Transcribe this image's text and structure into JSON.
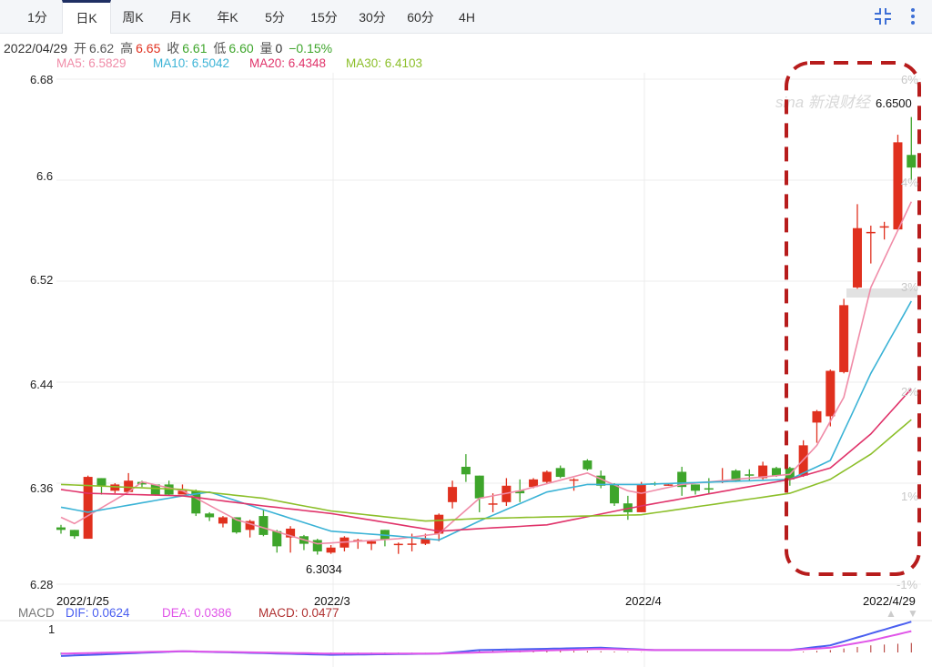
{
  "tabs": [
    {
      "label": "1分",
      "active": false
    },
    {
      "label": "日K",
      "active": true
    },
    {
      "label": "周K",
      "active": false
    },
    {
      "label": "月K",
      "active": false
    },
    {
      "label": "年K",
      "active": false
    },
    {
      "label": "5分",
      "active": false
    },
    {
      "label": "15分",
      "active": false
    },
    {
      "label": "30分",
      "active": false
    },
    {
      "label": "60分",
      "active": false
    },
    {
      "label": "4H",
      "active": false
    }
  ],
  "toolbar_icons": {
    "compress": "compress-icon",
    "more": "more-vertical-icon"
  },
  "info": {
    "date": "2022/04/29",
    "open_label": "开",
    "open": "6.62",
    "high_label": "高",
    "high": "6.65",
    "close_label": "收",
    "close": "6.61",
    "low_label": "低",
    "low": "6.60",
    "volume_label": "量",
    "volume": "0",
    "change": "−0.15%"
  },
  "ma_legend": [
    {
      "text": "MA5: 6.5829",
      "color": "#f08ca8"
    },
    {
      "text": "MA10: 6.5042",
      "color": "#3bb3d6"
    },
    {
      "text": "MA20: 6.4348",
      "color": "#e0336a"
    },
    {
      "text": "MA30: 6.4103",
      "color": "#8cbf2a"
    }
  ],
  "annotations": {
    "max_label": "6.6500",
    "min_label": "6.3034",
    "watermark": "sina 新浪财经"
  },
  "macd_legend": {
    "title": "MACD",
    "dif": "DIF: 0.0624",
    "dea": "DEA: 0.0386",
    "macd": "MACD: 0.0477"
  },
  "colors": {
    "up": "#e0301e",
    "down": "#3ea52b",
    "doji": "#222222",
    "dif": "#4a5ff0",
    "dea": "#e055e8",
    "highlight_box": "#b71c1c"
  },
  "chart_data": [
    {
      "type": "candlestick",
      "ylim": [
        6.28,
        6.68
      ],
      "y_ticks": [
        "6.68",
        "6.6",
        "6.52",
        "6.44",
        "6.36",
        "6.28"
      ],
      "right_ticks": [
        "6%",
        "4%",
        "3%",
        "2%",
        "1%",
        "-1%"
      ],
      "x_ticks": [
        {
          "label": "2022/1/25",
          "index": 0
        },
        {
          "label": "2022/3",
          "index": 20
        },
        {
          "label": "2022/4",
          "index": 43
        },
        {
          "label": "2022/4/29",
          "index": 63
        }
      ],
      "grid": true,
      "ohlc": [
        [
          6.325,
          6.327,
          6.32,
          6.323
        ],
        [
          6.323,
          6.323,
          6.316,
          6.318
        ],
        [
          6.316,
          6.366,
          6.316,
          6.365
        ],
        [
          6.364,
          6.364,
          6.351,
          6.358
        ],
        [
          6.354,
          6.36,
          6.352,
          6.359
        ],
        [
          6.353,
          6.368,
          6.353,
          6.362
        ],
        [
          6.361,
          6.362,
          6.357,
          6.359
        ],
        [
          6.359,
          6.359,
          6.35,
          6.351
        ],
        [
          6.359,
          6.362,
          6.35,
          6.351
        ],
        [
          6.351,
          6.359,
          6.351,
          6.354
        ],
        [
          6.354,
          6.355,
          6.334,
          6.336
        ],
        [
          6.336,
          6.337,
          6.33,
          6.333
        ],
        [
          6.328,
          6.334,
          6.325,
          6.333
        ],
        [
          6.333,
          6.333,
          6.32,
          6.321
        ],
        [
          6.323,
          6.331,
          6.317,
          6.33
        ],
        [
          6.334,
          6.339,
          6.318,
          6.319
        ],
        [
          6.322,
          6.323,
          6.305,
          6.31
        ],
        [
          6.317,
          6.326,
          6.305,
          6.324
        ],
        [
          6.318,
          6.319,
          6.307,
          6.312
        ],
        [
          6.315,
          6.316,
          6.3034,
          6.306
        ],
        [
          6.305,
          6.311,
          6.304,
          6.309
        ],
        [
          6.309,
          6.318,
          6.306,
          6.317
        ],
        [
          6.314,
          6.316,
          6.308,
          6.315
        ],
        [
          6.312,
          6.315,
          6.307,
          6.314
        ],
        [
          6.323,
          6.323,
          6.31,
          6.315
        ],
        [
          6.311,
          6.313,
          6.304,
          6.312
        ],
        [
          6.3118,
          6.32,
          6.306,
          6.3122
        ],
        [
          6.312,
          6.32,
          6.311,
          6.316
        ],
        [
          6.32,
          6.336,
          6.314,
          6.335
        ],
        [
          6.345,
          6.362,
          6.34,
          6.357
        ],
        [
          6.373,
          6.383,
          6.361,
          6.367
        ],
        [
          6.366,
          6.366,
          6.337,
          6.348
        ],
        [
          6.344,
          6.352,
          6.337,
          6.344
        ],
        [
          6.345,
          6.364,
          6.342,
          6.358
        ],
        [
          6.354,
          6.363,
          6.345,
          6.352
        ],
        [
          6.357,
          6.364,
          6.356,
          6.363
        ],
        [
          6.361,
          6.37,
          6.36,
          6.369
        ],
        [
          6.372,
          6.374,
          6.364,
          6.365
        ],
        [
          6.362,
          6.364,
          6.354,
          6.363
        ],
        [
          6.378,
          6.379,
          6.37,
          6.371
        ],
        [
          6.366,
          6.37,
          6.356,
          6.358
        ],
        [
          6.359,
          6.36,
          6.342,
          6.344
        ],
        [
          6.344,
          6.35,
          6.331,
          6.337
        ],
        [
          6.337,
          6.361,
          6.337,
          6.359
        ],
        [
          6.36,
          6.361,
          6.358,
          6.359
        ],
        [
          6.359,
          6.36,
          6.358,
          6.359
        ],
        [
          6.369,
          6.373,
          6.35,
          6.357
        ],
        [
          6.359,
          6.359,
          6.351,
          6.354
        ],
        [
          6.356,
          6.364,
          6.351,
          6.3555
        ],
        [
          6.361,
          6.372,
          6.36,
          6.362
        ],
        [
          6.37,
          6.371,
          6.361,
          6.362
        ],
        [
          6.367,
          6.371,
          6.362,
          6.366
        ],
        [
          6.364,
          6.377,
          6.363,
          6.374
        ],
        [
          6.372,
          6.373,
          6.365,
          6.366
        ],
        [
          6.372,
          6.373,
          6.358,
          6.363
        ],
        [
          6.366,
          6.394,
          6.365,
          6.39
        ],
        [
          6.408,
          6.418,
          6.392,
          6.417
        ],
        [
          6.413,
          6.45,
          6.405,
          6.449
        ],
        [
          6.448,
          6.506,
          6.447,
          6.501
        ],
        [
          6.515,
          6.581,
          6.514,
          6.562
        ],
        [
          6.558,
          6.564,
          6.534,
          6.559
        ],
        [
          6.563,
          6.567,
          6.553,
          6.5635
        ],
        [
          6.561,
          6.636,
          6.56,
          6.63
        ],
        [
          6.62,
          6.65,
          6.6,
          6.61
        ]
      ],
      "ma_series": [
        {
          "name": "MA5",
          "color": "#f08ca8",
          "points": [
            [
              0,
              6.333
            ],
            [
              1,
              6.328
            ],
            [
              5,
              6.353
            ],
            [
              6,
              6.361
            ],
            [
              9,
              6.354
            ],
            [
              13,
              6.331
            ],
            [
              19,
              6.312
            ],
            [
              25,
              6.316
            ],
            [
              28,
              6.32
            ],
            [
              31,
              6.348
            ],
            [
              34,
              6.354
            ],
            [
              39,
              6.368
            ],
            [
              42,
              6.354
            ],
            [
              43,
              6.352
            ],
            [
              46,
              6.359
            ],
            [
              54,
              6.367
            ],
            [
              56,
              6.39
            ],
            [
              58,
              6.428
            ],
            [
              60,
              6.515
            ],
            [
              63,
              6.5829
            ]
          ]
        },
        {
          "name": "MA10",
          "color": "#3bb3d6",
          "points": [
            [
              0,
              6.341
            ],
            [
              2,
              6.337
            ],
            [
              9,
              6.35
            ],
            [
              11,
              6.353
            ],
            [
              15,
              6.339
            ],
            [
              20,
              6.322
            ],
            [
              25,
              6.318
            ],
            [
              28,
              6.315
            ],
            [
              31,
              6.33
            ],
            [
              36,
              6.353
            ],
            [
              39,
              6.359
            ],
            [
              43,
              6.359
            ],
            [
              54,
              6.363
            ],
            [
              57,
              6.378
            ],
            [
              60,
              6.447
            ],
            [
              63,
              6.5042
            ]
          ]
        },
        {
          "name": "MA20",
          "color": "#e0336a",
          "points": [
            [
              0,
              6.355
            ],
            [
              2,
              6.352
            ],
            [
              9,
              6.35
            ],
            [
              15,
              6.342
            ],
            [
              20,
              6.336
            ],
            [
              28,
              6.322
            ],
            [
              31,
              6.324
            ],
            [
              36,
              6.327
            ],
            [
              43,
              6.342
            ],
            [
              54,
              6.363
            ],
            [
              57,
              6.372
            ],
            [
              60,
              6.399
            ],
            [
              63,
              6.4348
            ]
          ]
        },
        {
          "name": "MA30",
          "color": "#8cbf2a",
          "points": [
            [
              0,
              6.359
            ],
            [
              9,
              6.355
            ],
            [
              15,
              6.348
            ],
            [
              20,
              6.338
            ],
            [
              27,
              6.33
            ],
            [
              31,
              6.332
            ],
            [
              43,
              6.335
            ],
            [
              54,
              6.352
            ],
            [
              57,
              6.363
            ],
            [
              60,
              6.383
            ],
            [
              63,
              6.4103
            ]
          ]
        }
      ]
    },
    {
      "type": "line",
      "title": "MACD",
      "y_ticks": [
        "1"
      ],
      "series": [
        {
          "name": "DIF",
          "points": [
            [
              0,
              -0.15
            ],
            [
              9,
              0.05
            ],
            [
              20,
              -0.1
            ],
            [
              28,
              -0.05
            ],
            [
              31,
              0.1
            ],
            [
              40,
              0.2
            ],
            [
              44,
              0.1
            ],
            [
              54,
              0.1
            ],
            [
              57,
              0.3
            ],
            [
              60,
              0.8
            ],
            [
              63,
              1.3
            ]
          ]
        },
        {
          "name": "DEA",
          "points": [
            [
              0,
              -0.05
            ],
            [
              9,
              0.05
            ],
            [
              20,
              -0.05
            ],
            [
              28,
              -0.05
            ],
            [
              31,
              0.0
            ],
            [
              40,
              0.15
            ],
            [
              44,
              0.1
            ],
            [
              54,
              0.1
            ],
            [
              57,
              0.2
            ],
            [
              60,
              0.5
            ],
            [
              63,
              0.9
            ]
          ]
        }
      ]
    }
  ]
}
